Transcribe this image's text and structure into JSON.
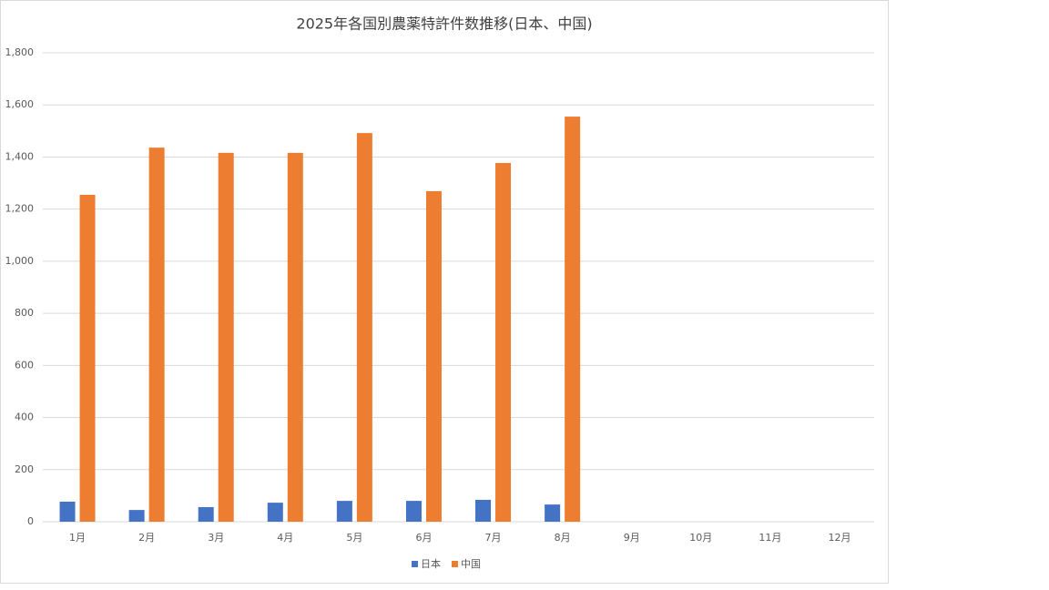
{
  "chart_data": {
    "type": "bar",
    "title": "2025年各国別農薬特許件数推移(日本、中国)",
    "categories": [
      "1月",
      "2月",
      "3月",
      "4月",
      "5月",
      "6月",
      "7月",
      "8月",
      "9月",
      "10月",
      "11月",
      "12月"
    ],
    "series": [
      {
        "name": "日本",
        "color": "#4472c4",
        "values": [
          77,
          45,
          56,
          73,
          80,
          80,
          84,
          66,
          null,
          null,
          null,
          null
        ]
      },
      {
        "name": "中国",
        "color": "#ed7d31",
        "values": [
          1255,
          1436,
          1416,
          1416,
          1492,
          1269,
          1377,
          1555,
          null,
          null,
          null,
          null
        ]
      }
    ],
    "ylim": [
      0,
      1800
    ],
    "yticks": [
      0,
      200,
      400,
      600,
      800,
      {
        "value": 1000,
        "label": "1,000"
      },
      {
        "value": 1200,
        "label": "1,200"
      },
      {
        "value": 1400,
        "label": "1,400"
      },
      {
        "value": 1600,
        "label": "1,600"
      },
      {
        "value": 1800,
        "label": "1,800"
      }
    ],
    "grid": true,
    "legend": "bottom"
  }
}
